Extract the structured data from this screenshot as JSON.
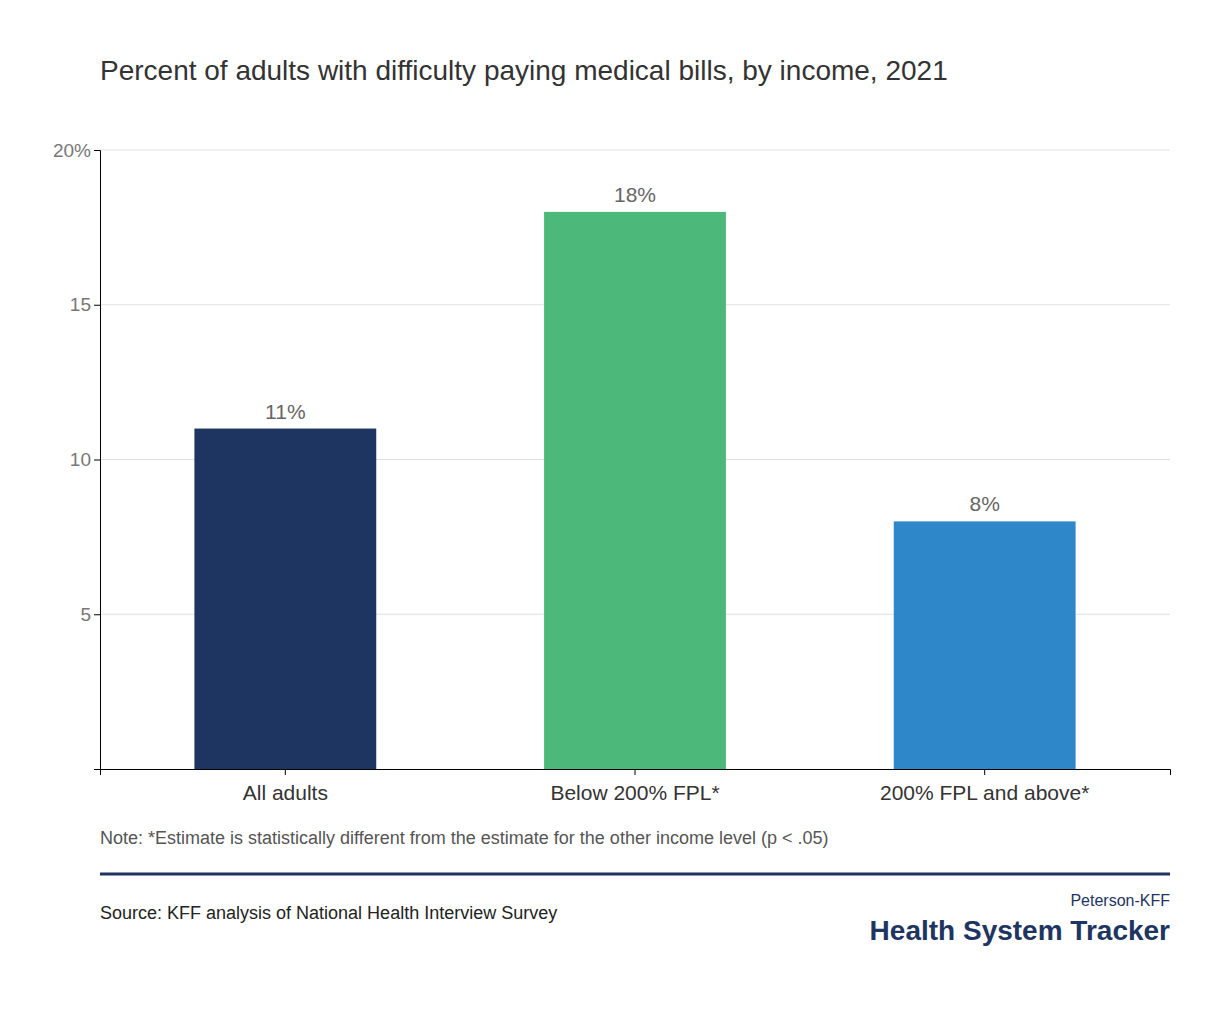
{
  "chart_data": {
    "type": "bar",
    "title": "Percent of adults with difficulty paying medical bills, by income, 2021",
    "categories": [
      "All adults",
      "Below 200% FPL*",
      "200% FPL and above*"
    ],
    "values": [
      11,
      18,
      8
    ],
    "value_labels": [
      "11%",
      "18%",
      "8%"
    ],
    "data_labels": true,
    "colors": [
      "#1e3461",
      "#4cb87a",
      "#2e87c8"
    ],
    "ylim": [
      0,
      20
    ],
    "yticks": [
      5,
      10,
      15,
      {
        "value": 20,
        "label": "20%"
      }
    ],
    "grid": true,
    "note": "Note: *Estimate is statistically different from the estimate for the other income level (p < .05)",
    "source": "Source: KFF analysis of National Health Interview Survey",
    "annotations": [
      "Peterson-KFF",
      "Health System Tracker"
    ]
  }
}
